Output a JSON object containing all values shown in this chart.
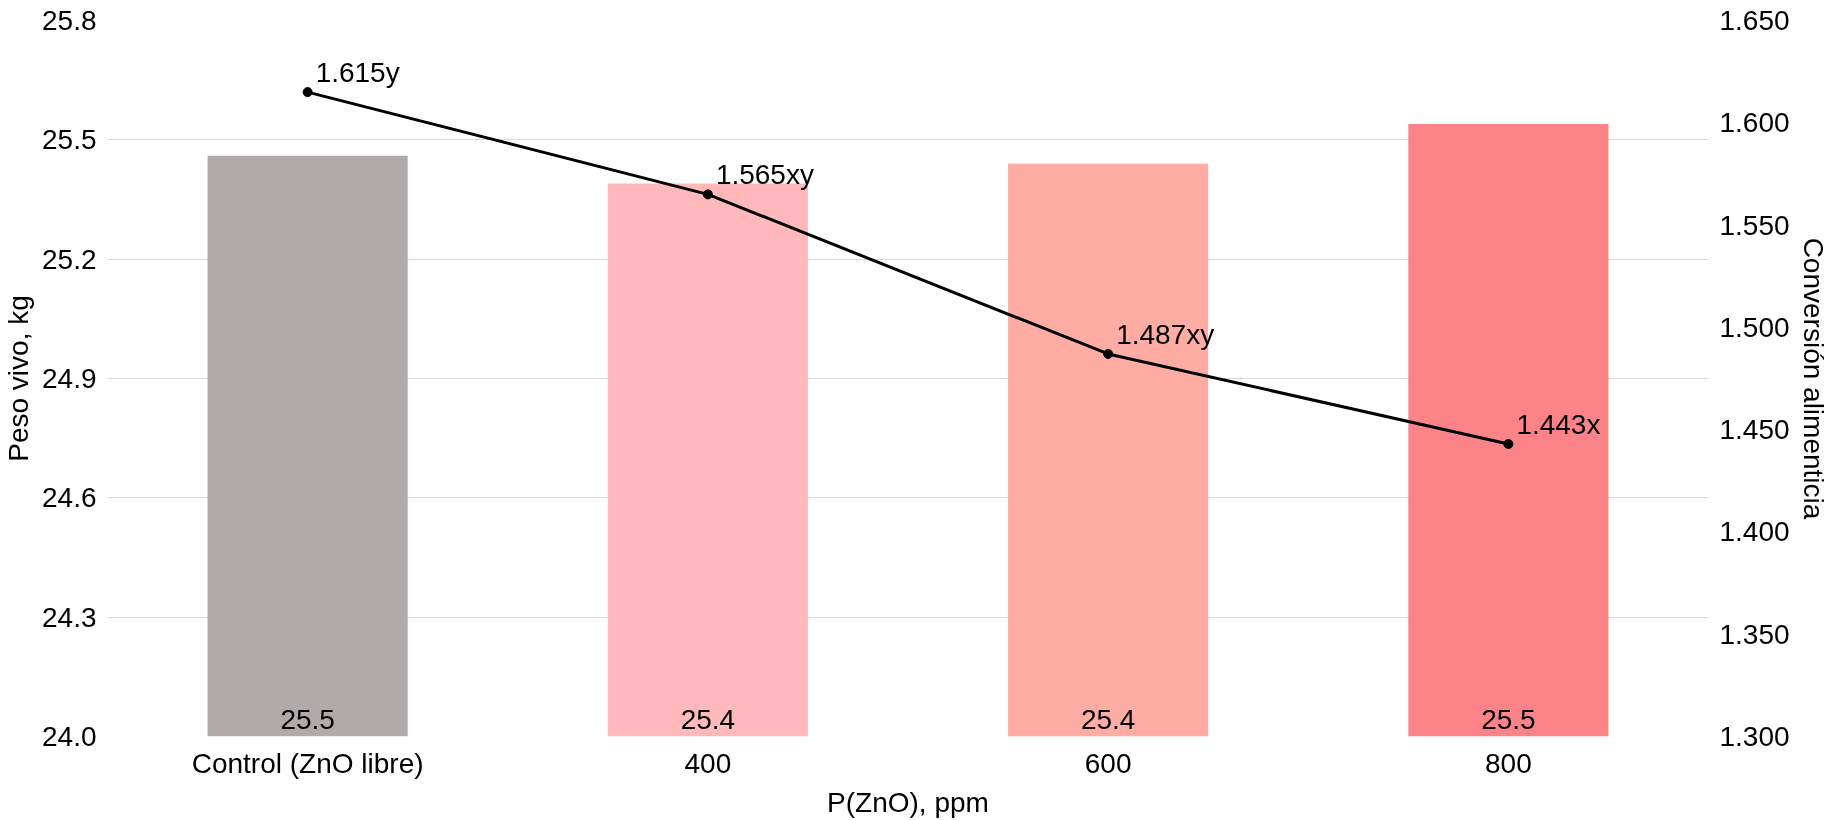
{
  "chart_data": {
    "type": "bar",
    "xlabel": "P(ZnO), ppm",
    "ylabel": "Peso vivo, kg",
    "y2label": "Conversión alimenticia",
    "categories": [
      "Control (ZnO libre)",
      "400",
      "600",
      "800"
    ],
    "series": [
      {
        "colors": [
          "#b0aaaa",
          "#ffb9bb",
          "#ffaca4",
          "#fc8489"
        ],
        "values": [
          25.46,
          25.39,
          25.44,
          25.54
        ],
        "value_labels": [
          "25.5",
          "25.4",
          "25.4",
          "25.5"
        ]
      },
      {
        "type": "line",
        "axis": "y2",
        "color": "#000000",
        "values": [
          1.615,
          1.565,
          1.487,
          1.443
        ],
        "value_labels": [
          "1.615y",
          "1.565xy",
          "1.487xy",
          "1.443x"
        ],
        "marker": "circle"
      }
    ],
    "ylim": [
      24.0,
      25.8
    ],
    "yticks": [
      {
        "value": 24.0,
        "label": "24.0"
      },
      24.3,
      24.6,
      24.9,
      25.2,
      25.5,
      25.8
    ],
    "y2lim": [
      1.3,
      1.65
    ],
    "y2ticks": [
      {
        "value": 1.3,
        "label": "1.300"
      },
      {
        "value": 1.35,
        "label": "1.350"
      },
      {
        "value": 1.4,
        "label": "1.400"
      },
      {
        "value": 1.45,
        "label": "1.450"
      },
      {
        "value": 1.5,
        "label": "1.500"
      },
      {
        "value": 1.55,
        "label": "1.550"
      },
      {
        "value": 1.6,
        "label": "1.600"
      },
      {
        "value": 1.65,
        "label": "1.650"
      }
    ],
    "grid": "y"
  }
}
